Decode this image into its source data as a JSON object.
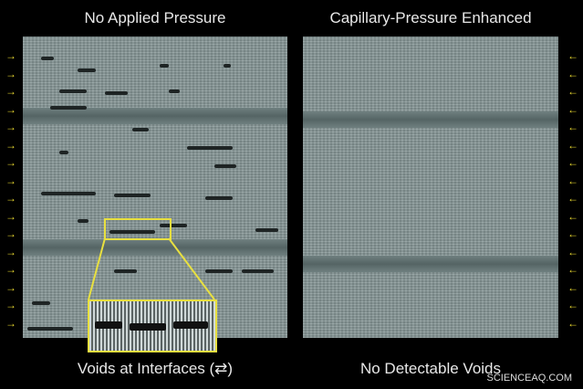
{
  "left_panel": {
    "title": "No Applied Pressure",
    "caption": "Voids at Interfaces (⇄)"
  },
  "right_panel": {
    "title": "Capillary-Pressure Enhanced",
    "caption": "No Detectable Voids"
  },
  "watermark": "SCIENCEAQ.COM",
  "arrow_color": "#e8d830",
  "left_arrow_glyph": "→",
  "right_arrow_glyph": "←"
}
